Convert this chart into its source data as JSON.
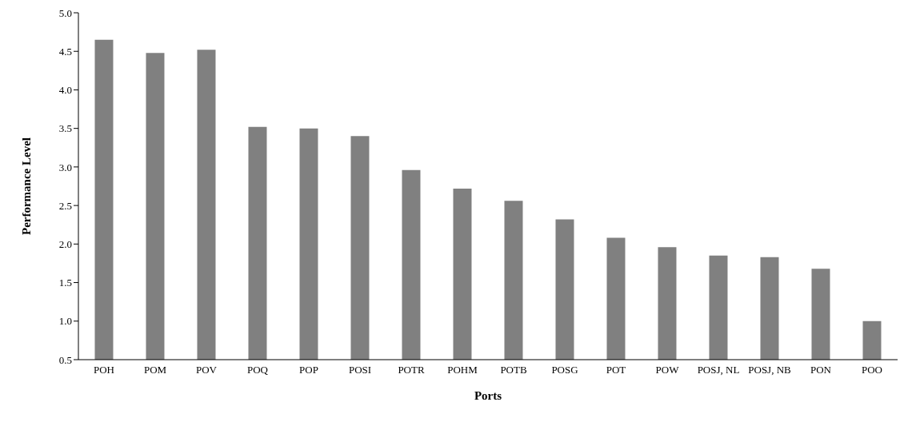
{
  "chart_data": {
    "type": "bar",
    "xlabel": "Ports",
    "ylabel": "Performance Level",
    "categories": [
      "POH",
      "POM",
      "POV",
      "POQ",
      "POP",
      "POSI",
      "POTR",
      "POHM",
      "POTB",
      "POSG",
      "POT",
      "POW",
      "POSJ, NL",
      "POSJ, NB",
      "PON",
      "POO"
    ],
    "values": [
      4.65,
      4.48,
      4.52,
      3.52,
      3.5,
      3.4,
      2.96,
      2.72,
      2.56,
      2.32,
      2.08,
      1.96,
      1.85,
      1.83,
      1.68,
      1.0
    ],
    "color": "#808080",
    "ylim": [
      0.5,
      5.0
    ],
    "yticks": [
      {
        "value": 0.5,
        "label": "0.5"
      },
      {
        "value": 1,
        "label": "1.0"
      },
      {
        "value": 1.5,
        "label": "1.5"
      },
      {
        "value": 2,
        "label": "2.0"
      },
      {
        "value": 2.5,
        "label": "2.5"
      },
      {
        "value": 3,
        "label": "3.0"
      },
      {
        "value": 3.5,
        "label": "3.5"
      },
      {
        "value": 4,
        "label": "4.0"
      },
      {
        "value": 4.5,
        "label": "4.5"
      },
      {
        "value": 5,
        "label": "5.0"
      }
    ],
    "grid": false,
    "legend": false
  }
}
